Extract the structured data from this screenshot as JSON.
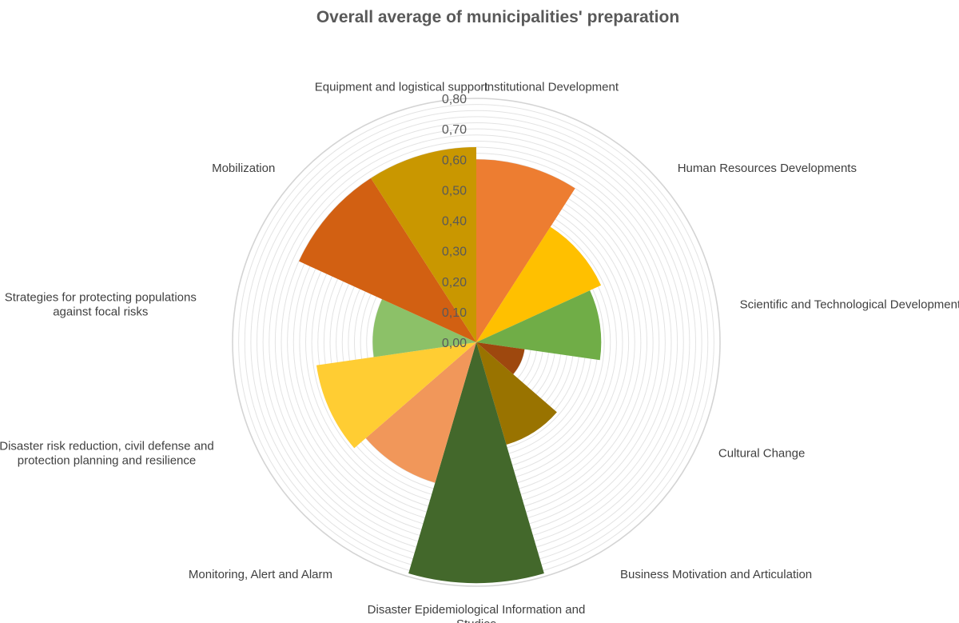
{
  "chart_data": {
    "type": "polar-area",
    "title": "Overall average of municipalities' preparation",
    "rlim": [
      0,
      0.8
    ],
    "ticks": [
      "0,00",
      "0,10",
      "0,20",
      "0,30",
      "0,40",
      "0,50",
      "0,60",
      "0,70",
      "0,80"
    ],
    "grid": true,
    "categories": [
      "Institutional Development",
      "Human Resources Developments",
      "Scientific and Technological Development",
      "Cultural Change",
      "Business Motivation and Articulation",
      "Disaster Epidemiological Information and Studies",
      "Monitoring, Alert and Alarm",
      "Disaster risk reduction, civil defense and protection planning and resilience",
      "Strategies for protecting populations against focal risks",
      "Mobilization",
      "Equipment and logistical support"
    ],
    "values": [
      0.6,
      0.45,
      0.41,
      0.16,
      0.35,
      0.79,
      0.48,
      0.53,
      0.34,
      0.64,
      0.64
    ],
    "colors": [
      "#ED7D31",
      "#FFC000",
      "#70AD47",
      "#9E480E",
      "#997300",
      "#43682B",
      "#F1975A",
      "#FFCD33",
      "#8CC168",
      "#D26012",
      "#C99700"
    ]
  }
}
